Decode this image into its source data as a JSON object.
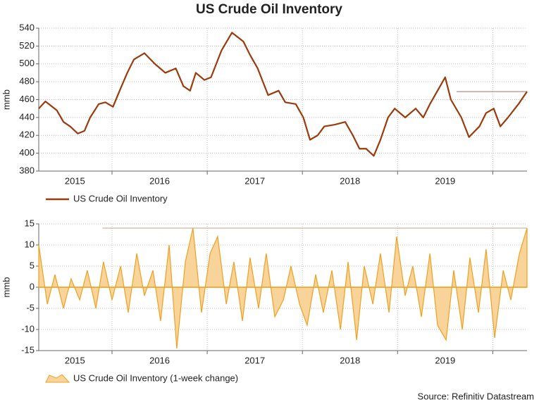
{
  "title": "US Crude Oil Inventory",
  "source": "Source: Refinitiv Datastream",
  "chart_data": [
    {
      "type": "line",
      "ylabel": "mmb",
      "x": [
        2015.23,
        2015.3,
        2015.42,
        2015.49,
        2015.56,
        2015.64,
        2015.71,
        2015.77,
        2015.86,
        2015.93,
        2016.01,
        2016.08,
        2016.16,
        2016.23,
        2016.34,
        2016.45,
        2016.56,
        2016.67,
        2016.75,
        2016.82,
        2016.88,
        2016.97,
        2017.04,
        2017.15,
        2017.26,
        2017.38,
        2017.45,
        2017.53,
        2017.64,
        2017.75,
        2017.82,
        2017.93,
        2018.01,
        2018.08,
        2018.16,
        2018.23,
        2018.34,
        2018.45,
        2018.53,
        2018.6,
        2018.67,
        2018.75,
        2018.82,
        2018.9,
        2018.97,
        2019.08,
        2019.19,
        2019.27,
        2019.34,
        2019.42,
        2019.5,
        2019.56,
        2019.67,
        2019.75,
        2019.86,
        2019.93,
        2020.01,
        2020.08,
        2020.16,
        2020.27,
        2020.36
      ],
      "series": [
        {
          "name": "US Crude Oil Inventory",
          "color": "#9c3a0c",
          "values": [
            450,
            458,
            448,
            435,
            430,
            422,
            425,
            440,
            455,
            457,
            452,
            470,
            490,
            505,
            512,
            500,
            490,
            495,
            475,
            470,
            490,
            482,
            485,
            515,
            535,
            525,
            510,
            495,
            465,
            470,
            457,
            455,
            440,
            415,
            420,
            430,
            432,
            435,
            420,
            405,
            405,
            397,
            415,
            440,
            450,
            440,
            450,
            440,
            455,
            470,
            485,
            460,
            440,
            418,
            430,
            445,
            450,
            430,
            440,
            455,
            469
          ]
        }
      ],
      "reference_line": {
        "y": 469,
        "x": [
          2019.62,
          2020.36
        ],
        "color": "#b06a6a"
      },
      "xlim": [
        2015.23,
        2020.36
      ],
      "ylim": [
        380,
        540
      ],
      "yticks": [
        380,
        400,
        420,
        440,
        460,
        480,
        500,
        520,
        540
      ],
      "xgrid": [
        2016,
        2017,
        2018,
        2019,
        2020
      ],
      "xticks": [
        {
          "value": 2015.61,
          "label": "2015"
        },
        {
          "value": 2016.5,
          "label": "2016"
        },
        {
          "value": 2017.5,
          "label": "2017"
        },
        {
          "value": 2018.5,
          "label": "2018"
        },
        {
          "value": 2019.5,
          "label": "2019"
        }
      ],
      "grid": true
    },
    {
      "type": "area",
      "ylabel": "mmb",
      "x": [
        2015.23,
        2015.32,
        2015.4,
        2015.49,
        2015.57,
        2015.66,
        2015.74,
        2015.83,
        2015.91,
        2016.0,
        2016.09,
        2016.17,
        2016.26,
        2016.34,
        2016.43,
        2016.51,
        2016.6,
        2016.68,
        2016.77,
        2016.85,
        2016.94,
        2017.03,
        2017.11,
        2017.2,
        2017.28,
        2017.37,
        2017.45,
        2017.54,
        2017.62,
        2017.71,
        2017.8,
        2017.88,
        2017.97,
        2018.05,
        2018.14,
        2018.22,
        2018.31,
        2018.4,
        2018.48,
        2018.57,
        2018.65,
        2018.74,
        2018.82,
        2018.91,
        2018.99,
        2019.08,
        2019.16,
        2019.25,
        2019.34,
        2019.42,
        2019.51,
        2019.59,
        2019.68,
        2019.76,
        2019.85,
        2019.93,
        2020.02,
        2020.11,
        2020.19,
        2020.28,
        2020.36
      ],
      "series": [
        {
          "name": "US Crude Oil Inventory (1-week change)",
          "color": "#f0a020",
          "fill": "#f8d49a",
          "values": [
            10,
            -4,
            3,
            -5,
            2,
            -3,
            4,
            -5,
            6,
            -3,
            5,
            -6,
            8,
            -2,
            4,
            -8,
            10,
            -14.5,
            6,
            14,
            -6,
            8,
            12,
            -4,
            6,
            -8,
            7,
            -5,
            8,
            -7,
            -3,
            5,
            -4,
            -9,
            3,
            -6,
            4,
            -10,
            6,
            -12.5,
            5,
            -4,
            8,
            -6,
            12,
            -2,
            5,
            -7,
            8,
            -9,
            -12.5,
            4,
            -10,
            7,
            -6,
            9,
            -12,
            4,
            -3,
            8,
            14
          ]
        }
      ],
      "reference_line": {
        "y": 14,
        "x": [
          2015.9,
          2020.36
        ],
        "color": "#c8a080"
      },
      "xlim": [
        2015.23,
        2020.36
      ],
      "ylim": [
        -15,
        15
      ],
      "yticks": [
        -15,
        -10,
        -5,
        0,
        5,
        10,
        15
      ],
      "xgrid": [
        2016,
        2017,
        2018,
        2019,
        2020
      ],
      "xticks": [
        {
          "value": 2015.61,
          "label": "2015"
        },
        {
          "value": 2016.5,
          "label": "2016"
        },
        {
          "value": 2017.5,
          "label": "2017"
        },
        {
          "value": 2018.5,
          "label": "2018"
        },
        {
          "value": 2019.5,
          "label": "2019"
        }
      ],
      "grid": true
    }
  ]
}
